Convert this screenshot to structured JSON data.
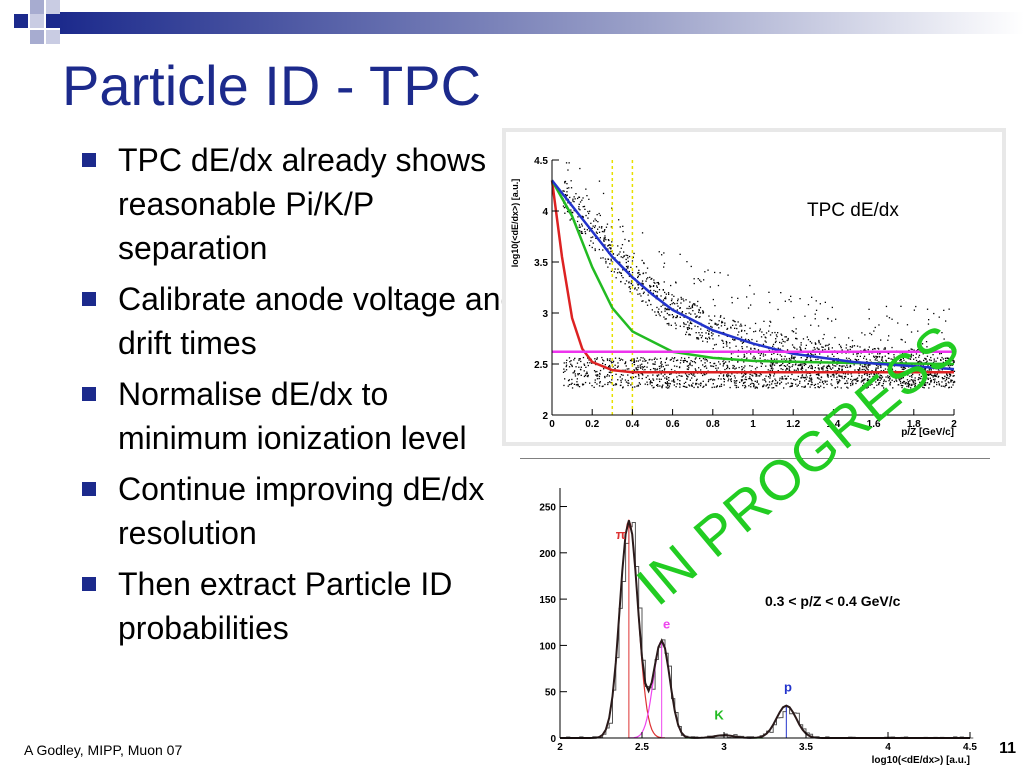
{
  "slide": {
    "title": "Particle ID - TPC",
    "footer": "A Godley, MIPP, Muon 07",
    "page_number": "11",
    "watermark": "IN PROGRESS",
    "accent_color": "#1c2a8c",
    "bullets": [
      "TPC dE/dx already shows reasonable Pi/K/P separation",
      "Calibrate anode voltage and drift times",
      "Normalise dE/dx to minimum ionization level",
      "Continue improving dE/dx resolution",
      "Then extract Particle ID probabilities"
    ]
  },
  "chart_data": [
    {
      "type": "scatter",
      "annotation": "TPC dE/dx",
      "xlabel": "p/Z [GeV/c]",
      "ylabel": "log10(<dE/dx>) [a.u.]",
      "xlim": [
        0,
        2
      ],
      "ylim": [
        2,
        4.5
      ],
      "x_ticks": [
        "0",
        "0.2",
        "0.4",
        "0.6",
        "0.8",
        "1",
        "1.2",
        "1.4",
        "1.6",
        "1.8",
        "2"
      ],
      "y_ticks": [
        "2",
        "2.5",
        "3",
        "3.5",
        "4",
        "4.5"
      ],
      "cut_lines": [
        0.3,
        0.4
      ],
      "series": [
        {
          "color": "#dd2222",
          "x": [
            0.0,
            0.05,
            0.1,
            0.15,
            0.2,
            0.3,
            0.4,
            0.6,
            1.0,
            2.0
          ],
          "y": [
            4.3,
            3.55,
            2.95,
            2.65,
            2.52,
            2.44,
            2.42,
            2.42,
            2.42,
            2.42
          ]
        },
        {
          "color": "#22bb22",
          "x": [
            0.0,
            0.1,
            0.2,
            0.3,
            0.4,
            0.6,
            0.8,
            1.0,
            1.5,
            2.0
          ],
          "y": [
            4.3,
            3.95,
            3.45,
            3.05,
            2.82,
            2.62,
            2.56,
            2.53,
            2.51,
            2.5
          ]
        },
        {
          "color": "#2233cc",
          "x": [
            0.0,
            0.1,
            0.2,
            0.3,
            0.4,
            0.5,
            0.6,
            0.8,
            1.0,
            1.2,
            1.5,
            2.0
          ],
          "y": [
            4.3,
            4.05,
            3.8,
            3.55,
            3.35,
            3.18,
            3.03,
            2.83,
            2.7,
            2.6,
            2.52,
            2.45
          ]
        },
        {
          "color": "#ee33ee",
          "x": [
            0.0,
            2.0
          ],
          "y": [
            2.62,
            2.62
          ]
        }
      ]
    },
    {
      "type": "line",
      "cut_label": "0.3 < p/Z < 0.4 GeV/c",
      "xlabel": "log10(<dE/dx>) [a.u.]",
      "xlim": [
        2,
        4.5
      ],
      "ylim": [
        0,
        270
      ],
      "x_ticks": [
        "2",
        "2.5",
        "3",
        "3.5",
        "4",
        "4.5"
      ],
      "y_ticks": [
        "0",
        "50",
        "100",
        "150",
        "200",
        "250"
      ],
      "peaks": [
        {
          "name": "π",
          "color": "#dd3333",
          "center": 2.42,
          "height": 235,
          "width": 0.055
        },
        {
          "name": "e",
          "color": "#ee44ee",
          "center": 2.62,
          "height": 105,
          "width": 0.05
        },
        {
          "name": "K",
          "color": "#22bb22",
          "center": 3.0,
          "height": 3,
          "width": 0.06
        },
        {
          "name": "p",
          "color": "#2233cc",
          "center": 3.38,
          "height": 35,
          "width": 0.06
        }
      ]
    }
  ]
}
